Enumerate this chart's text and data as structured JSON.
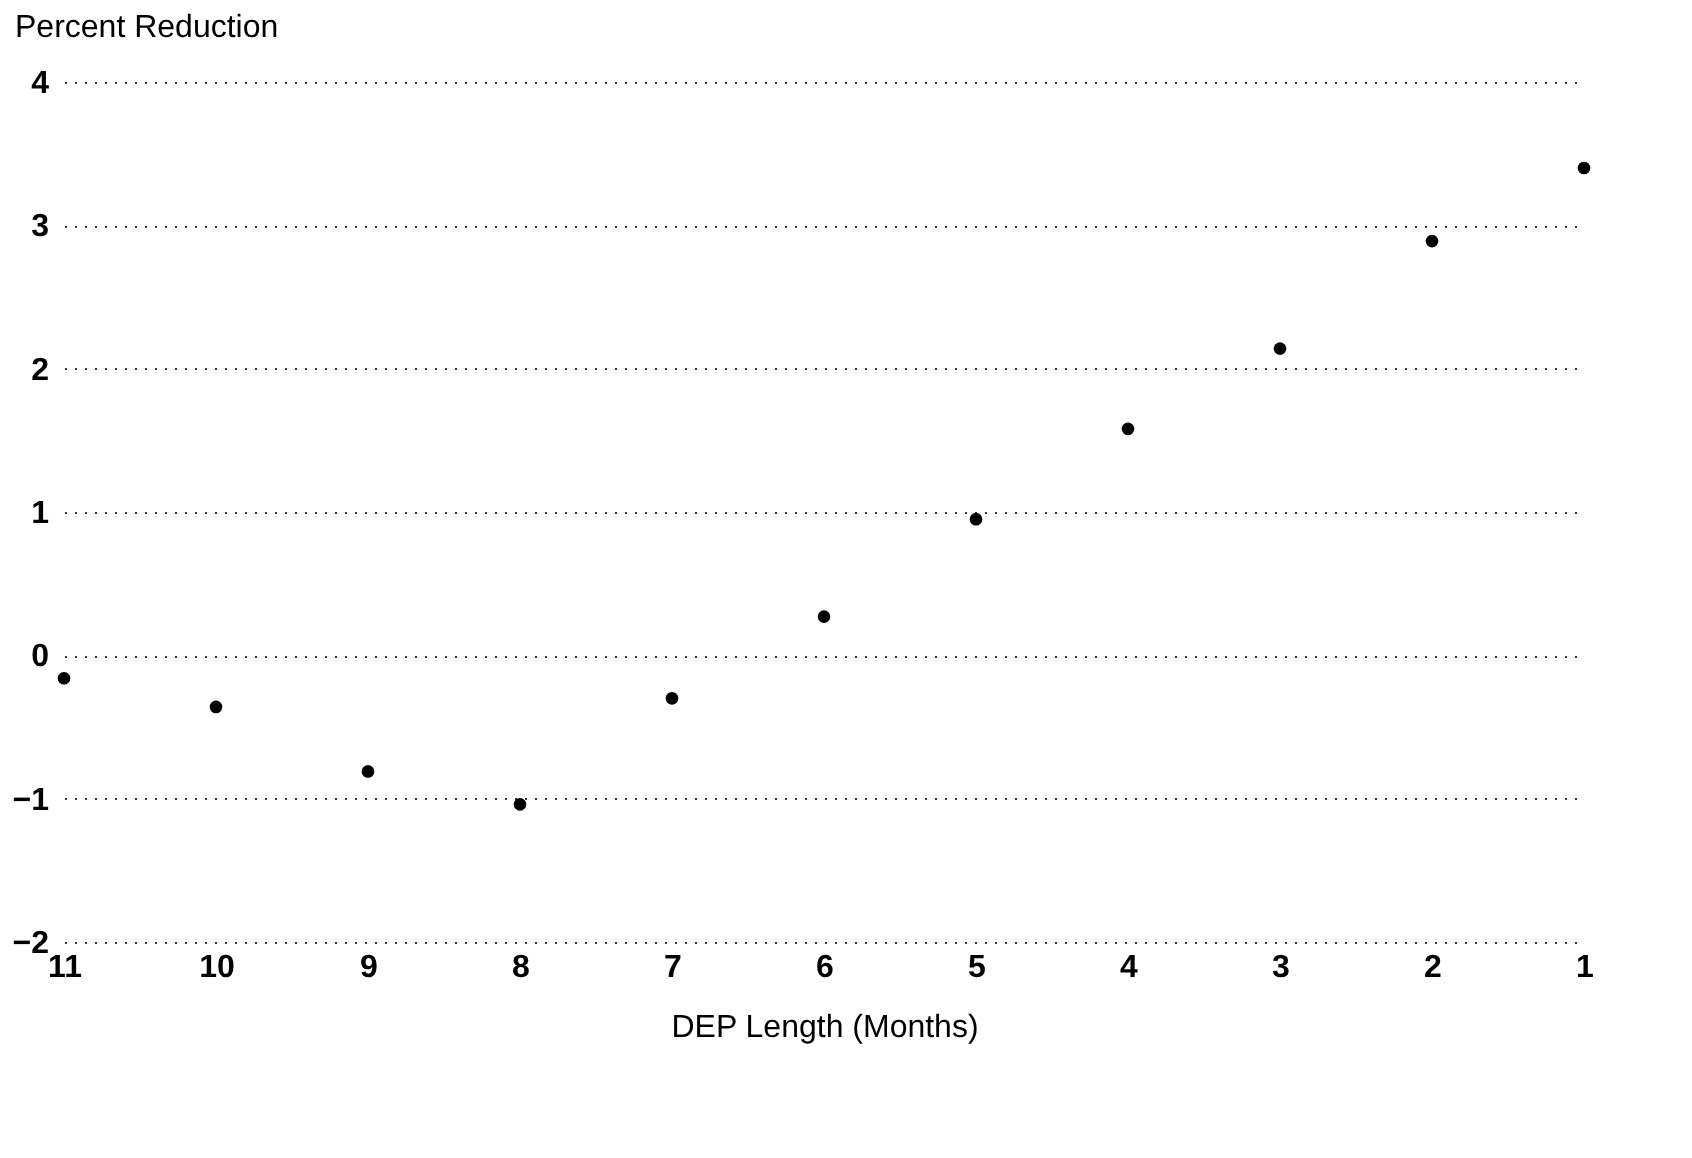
{
  "chart_data": {
    "type": "scatter",
    "ylabel": "Percent Reduction",
    "xlabel": "DEP Length (Months)",
    "x": [
      11,
      10,
      9,
      8,
      7,
      6,
      5,
      4,
      3,
      2,
      1
    ],
    "values": [
      -0.16,
      -0.36,
      -0.81,
      -1.04,
      -0.3,
      0.27,
      0.95,
      1.58,
      2.14,
      2.89,
      3.4
    ],
    "color": "#000000",
    "marker": "circle",
    "xlim": [
      11,
      1
    ],
    "xticks": [
      11,
      10,
      9,
      8,
      7,
      6,
      5,
      4,
      3,
      2,
      1
    ],
    "ylim": [
      -2,
      4
    ],
    "yticks": [
      -2,
      -1,
      0,
      1,
      2,
      3,
      4
    ],
    "grid": "y",
    "line_style": "dotted"
  }
}
